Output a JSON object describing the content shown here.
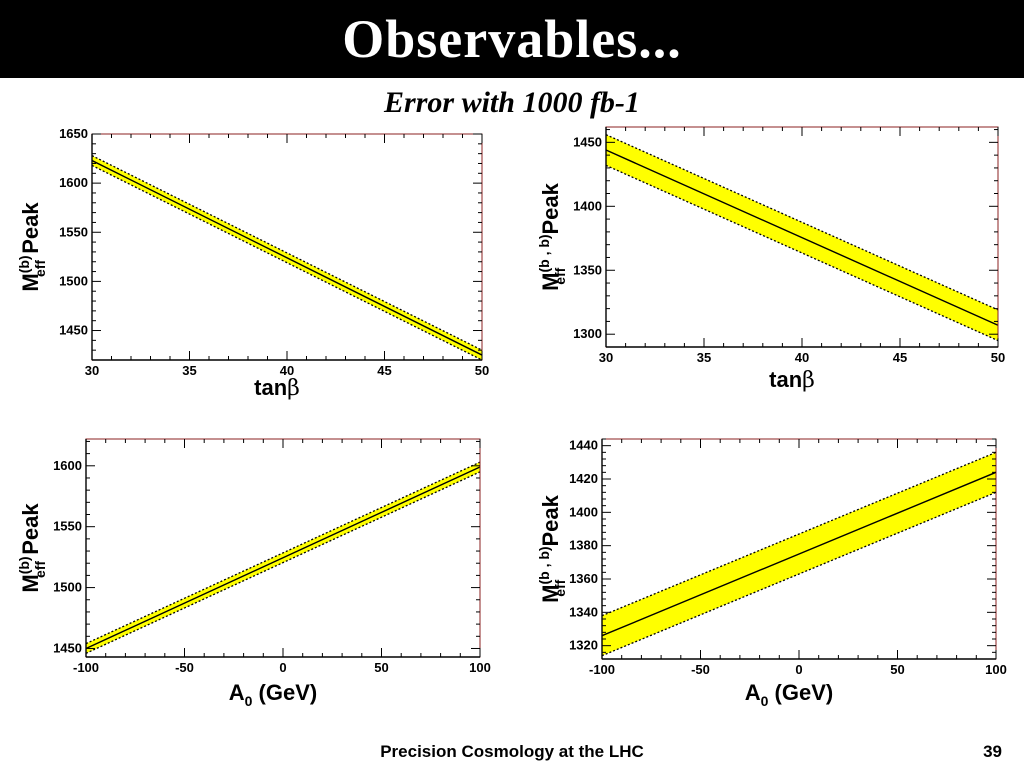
{
  "slide": {
    "title": "Observables...",
    "subtitle": "Error with 1000 fb-1",
    "footer": "Precision Cosmology at the LHC",
    "page_number": "39"
  },
  "colors": {
    "band": "#ffff00",
    "line": "#000000",
    "frame": "#8b2020",
    "title_bg": "#000000"
  },
  "chart_data": [
    {
      "type": "line",
      "xlabel_parts": [
        "tan",
        "β"
      ],
      "ylabel": {
        "main": "M",
        "sub": "eff",
        "sup": "(b)",
        "tail": " Peak"
      },
      "xlim": [
        30,
        50
      ],
      "ylim": [
        1420,
        1650
      ],
      "xticks": [
        "30",
        "35",
        "40",
        "45",
        "50"
      ],
      "yticks": [
        "1450",
        "1500",
        "1550",
        "1600",
        "1650"
      ],
      "series": [
        {
          "x": [
            30,
            50
          ],
          "y": [
            1623,
            1425
          ],
          "err": [
            5,
            5
          ]
        }
      ]
    },
    {
      "type": "line",
      "xlabel_parts": [
        "tan",
        "β"
      ],
      "ylabel": {
        "main": "M",
        "sub": "eff",
        "sup": "(b , b)",
        "tail": " Peak"
      },
      "xlim": [
        30,
        50
      ],
      "ylim": [
        1290,
        1462
      ],
      "xticks": [
        "30",
        "35",
        "40",
        "45",
        "50"
      ],
      "yticks": [
        "1300",
        "1350",
        "1400",
        "1450"
      ],
      "series": [
        {
          "x": [
            30,
            50
          ],
          "y": [
            1444,
            1307
          ],
          "err": [
            12,
            12
          ]
        }
      ]
    },
    {
      "type": "line",
      "xlabel_parts": [
        "A",
        "0",
        " (GeV)"
      ],
      "ylabel": {
        "main": "M",
        "sub": "eff",
        "sup": "(b)",
        "tail": " Peak"
      },
      "xlim": [
        -100,
        100
      ],
      "ylim": [
        1443,
        1622
      ],
      "xticks": [
        "-100",
        "-50",
        "0",
        "50",
        "100"
      ],
      "yticks": [
        "1450",
        "1500",
        "1550",
        "1600"
      ],
      "series": [
        {
          "x": [
            -100,
            100
          ],
          "y": [
            1450,
            1599
          ],
          "err": [
            4,
            4
          ]
        }
      ]
    },
    {
      "type": "line",
      "xlabel_parts": [
        "A",
        "0",
        " (GeV)"
      ],
      "ylabel": {
        "main": "M",
        "sub": "eff",
        "sup": "(b , b)",
        "tail": " Peak"
      },
      "xlim": [
        -100,
        100
      ],
      "ylim": [
        1312,
        1444
      ],
      "xticks": [
        "-100",
        "-50",
        "0",
        "50",
        "100"
      ],
      "yticks": [
        "1320",
        "1340",
        "1360",
        "1380",
        "1400",
        "1420",
        "1440"
      ],
      "series": [
        {
          "x": [
            -100,
            100
          ],
          "y": [
            1326,
            1424
          ],
          "err": [
            12,
            12
          ]
        }
      ]
    }
  ]
}
